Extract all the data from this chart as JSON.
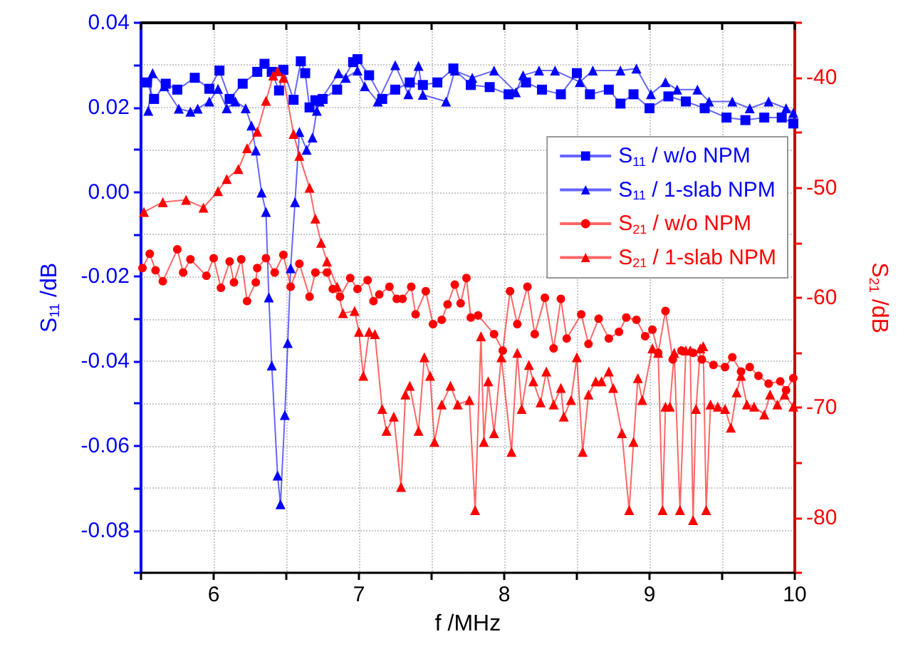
{
  "chart_data": {
    "type": "line",
    "xlabel": "f /MHz",
    "ylabel": "S$_{11}$ /dB",
    "y2label": "S$_{21}$ /dB",
    "xlim": [
      5.5,
      10
    ],
    "xticks": [
      {
        "value": 5.5,
        "label": null
      },
      6,
      {
        "value": 6.5,
        "label": null
      },
      7,
      {
        "value": 7.5,
        "label": null
      },
      8,
      {
        "value": 8.5,
        "label": null
      },
      9,
      {
        "value": 9.5,
        "label": null
      },
      10
    ],
    "ylim": [
      -0.09,
      0.04
    ],
    "yticks": [
      {
        "value": -0.09,
        "label": null
      },
      -0.08,
      {
        "value": -0.07,
        "label": null
      },
      -0.06,
      {
        "value": -0.05,
        "label": null
      },
      -0.04,
      {
        "value": -0.03,
        "label": null
      },
      -0.02,
      {
        "value": -0.01,
        "label": null
      },
      {
        "value": 0,
        "label": "0.00"
      },
      {
        "value": 0.01,
        "label": null
      },
      0.02,
      {
        "value": 0.03,
        "label": null
      },
      0.04
    ],
    "y2lim": [
      -85,
      -35
    ],
    "y2ticks": [
      {
        "value": -85,
        "label": null
      },
      -80,
      {
        "value": -75,
        "label": null
      },
      -70,
      {
        "value": -65,
        "label": null
      },
      -60,
      {
        "value": -55,
        "label": null
      },
      -50,
      {
        "value": -45,
        "label": null
      },
      -40,
      {
        "value": -35,
        "label": null
      }
    ],
    "grid": true,
    "legend": "right",
    "line_style": "solid",
    "series": [
      {
        "name": "S$_{11}$ / w/o NPM",
        "color": "#0000ff",
        "marker": "square",
        "x": [
          5.54,
          5.59,
          5.67,
          5.75,
          5.87,
          5.97,
          6.04,
          6.11,
          6.2,
          6.3,
          6.35,
          6.4,
          6.45,
          6.48,
          6.55,
          6.6,
          6.63,
          6.66,
          6.7,
          6.75,
          6.85,
          6.96,
          6.99,
          7.07,
          7.16,
          7.25,
          7.35,
          7.44,
          7.54,
          7.65,
          7.77,
          7.9,
          8.03,
          8.15,
          8.26,
          8.39,
          8.5,
          8.59,
          8.72,
          8.8,
          8.89,
          9.0,
          9.13,
          9.25,
          9.38,
          9.53,
          9.66,
          9.79,
          9.91,
          9.99
        ],
        "values": [
          0.0259,
          0.022,
          0.0256,
          0.0242,
          0.027,
          0.0244,
          0.0287,
          0.022,
          0.0256,
          0.0284,
          0.0303,
          0.0284,
          0.024,
          0.0289,
          0.0218,
          0.0309,
          0.0281,
          0.02,
          0.0217,
          0.022,
          0.0242,
          0.0307,
          0.0314,
          0.0276,
          0.022,
          0.0242,
          0.0259,
          0.0253,
          0.0259,
          0.0292,
          0.0253,
          0.0248,
          0.0231,
          0.0259,
          0.0242,
          0.0231,
          0.0281,
          0.0231,
          0.0242,
          0.0209,
          0.0231,
          0.0198,
          0.0226,
          0.0214,
          0.0198,
          0.0176,
          0.017,
          0.0176,
          0.0176,
          0.0162
        ]
      },
      {
        "name": "S$_{11}$ / 1-slab NPM",
        "color": "#0000ff",
        "marker": "triangle",
        "x": [
          5.55,
          5.58,
          5.66,
          5.76,
          5.84,
          5.89,
          5.97,
          6.03,
          6.09,
          6.15,
          6.22,
          6.26,
          6.29,
          6.33,
          6.36,
          6.38,
          6.4,
          6.44,
          6.46,
          6.49,
          6.51,
          6.53,
          6.56,
          6.59,
          6.64,
          6.68,
          6.71,
          6.73,
          6.86,
          6.91,
          6.99,
          7.04,
          7.13,
          7.25,
          7.34,
          7.41,
          7.44,
          7.6,
          7.66,
          7.78,
          7.93,
          8.08,
          8.13,
          8.24,
          8.35,
          8.52,
          8.61,
          8.8,
          8.91,
          9.01,
          9.11,
          9.19,
          9.33,
          9.41,
          9.57,
          9.69,
          9.82,
          9.94,
          9.99
        ],
        "values": [
          0.0192,
          0.0281,
          0.025,
          0.0197,
          0.019,
          0.0197,
          0.0214,
          0.0244,
          0.0198,
          0.0214,
          0.0198,
          0.0157,
          0.0098,
          -0.0001,
          -0.0047,
          -0.0249,
          -0.041,
          -0.067,
          -0.0738,
          -0.0527,
          -0.0357,
          -0.018,
          -0.0024,
          0.0142,
          0.01,
          0.0129,
          0.0192,
          0.0214,
          0.0281,
          0.027,
          0.0287,
          0.025,
          0.0214,
          0.03,
          0.0231,
          0.0298,
          0.023,
          0.0214,
          0.0287,
          0.027,
          0.0287,
          0.0236,
          0.0276,
          0.0287,
          0.0287,
          0.026,
          0.0287,
          0.0287,
          0.0292,
          0.0231,
          0.026,
          0.0242,
          0.0242,
          0.0214,
          0.0214,
          0.0198,
          0.0214,
          0.0198,
          0.0187
        ]
      },
      {
        "name": "S$_{21}$ / w/o NPM",
        "color": "#ff0000",
        "marker": "circle",
        "axis": "y2",
        "x": [
          5.51,
          5.56,
          5.6,
          5.65,
          5.75,
          5.79,
          5.84,
          5.95,
          6.0,
          6.05,
          6.11,
          6.14,
          6.19,
          6.23,
          6.29,
          6.3,
          6.36,
          6.42,
          6.48,
          6.53,
          6.59,
          6.66,
          6.7,
          6.78,
          6.82,
          6.87,
          6.94,
          6.99,
          7.06,
          7.1,
          7.14,
          7.21,
          7.26,
          7.3,
          7.36,
          7.39,
          7.46,
          7.51,
          7.57,
          7.61,
          7.66,
          7.7,
          7.74,
          7.77,
          7.82,
          7.93,
          7.99,
          8.04,
          8.09,
          8.16,
          8.21,
          8.28,
          8.34,
          8.39,
          8.43,
          8.53,
          8.58,
          8.65,
          8.72,
          8.79,
          8.84,
          8.91,
          8.97,
          9.02,
          9.06,
          9.11,
          9.16,
          9.22,
          9.3,
          9.36,
          9.44,
          9.52,
          9.57,
          9.63,
          9.69,
          9.75,
          9.82,
          9.9,
          9.94,
          9.99
        ],
        "values": [
          -57.3,
          -56,
          -57.5,
          -58.5,
          -55.6,
          -57.7,
          -56.5,
          -58,
          -56.4,
          -59.1,
          -56.7,
          -58.6,
          -56.5,
          -60.3,
          -58.6,
          -57.3,
          -56.4,
          -57.7,
          -56.1,
          -59,
          -56.9,
          -59.9,
          -57.7,
          -57.7,
          -59.2,
          -59.9,
          -58.2,
          -59.2,
          -58.4,
          -60.3,
          -59.7,
          -59,
          -60.1,
          -60.1,
          -59,
          -61.5,
          -59.4,
          -62.4,
          -62,
          -60.6,
          -58.8,
          -60.5,
          -58.2,
          -61.8,
          -61.6,
          -63.3,
          -64.8,
          -59.4,
          -62.4,
          -59,
          -63.3,
          -60,
          -64.6,
          -60.1,
          -63.7,
          -61.5,
          -64.2,
          -61.9,
          -63.7,
          -63.1,
          -61.8,
          -62,
          -63.5,
          -62.9,
          -65,
          -61.2,
          -65.6,
          -64.8,
          -65,
          -65.6,
          -66.1,
          -66.3,
          -65.4,
          -66.7,
          -66.3,
          -67.1,
          -67.8,
          -67.6,
          -68.4,
          -67.3
        ]
      },
      {
        "name": "S$_{21}$ / 1-slab NPM",
        "color": "#ff0000",
        "marker": "triangle",
        "axis": "y2",
        "x": [
          5.52,
          5.65,
          5.81,
          5.93,
          6.03,
          6.09,
          6.17,
          6.23,
          6.3,
          6.36,
          6.41,
          6.44,
          6.48,
          6.55,
          6.59,
          6.66,
          6.7,
          6.74,
          6.78,
          6.85,
          6.89,
          6.97,
          7.0,
          7.03,
          7.07,
          7.11,
          7.16,
          7.19,
          7.24,
          7.29,
          7.32,
          7.35,
          7.41,
          7.45,
          7.49,
          7.52,
          7.57,
          7.63,
          7.68,
          7.76,
          7.8,
          7.84,
          7.86,
          7.89,
          7.93,
          7.98,
          8.05,
          8.09,
          8.12,
          8.17,
          8.2,
          8.25,
          8.29,
          8.34,
          8.39,
          8.41,
          8.46,
          8.5,
          8.54,
          8.58,
          8.63,
          8.67,
          8.72,
          8.75,
          8.81,
          8.86,
          8.89,
          8.92,
          8.95,
          9.02,
          9.06,
          9.09,
          9.11,
          9.14,
          9.17,
          9.21,
          9.25,
          9.28,
          9.3,
          9.32,
          9.35,
          9.37,
          9.39,
          9.42,
          9.47,
          9.52,
          9.56,
          9.6,
          9.63,
          9.67,
          9.72,
          9.79,
          9.83,
          9.88,
          9.93,
          9.99
        ],
        "values": [
          -52.2,
          -51.3,
          -51.1,
          -51.8,
          -50.3,
          -49.2,
          -48.3,
          -46.4,
          -44.9,
          -42.1,
          -39.8,
          -39.4,
          -40,
          -45.1,
          -47.1,
          -50,
          -52.8,
          -55,
          -56.7,
          -59,
          -61.4,
          -61.2,
          -63.1,
          -67.1,
          -63.1,
          -63.3,
          -70.1,
          -72.1,
          -70.8,
          -77.2,
          -68.8,
          -68,
          -72.1,
          -65.4,
          -67.1,
          -73.1,
          -69.7,
          -68,
          -69.7,
          -69.3,
          -79.3,
          -63.5,
          -73.1,
          -67.6,
          -72.3,
          -65.4,
          -74,
          -65,
          -70.1,
          -66.1,
          -67.6,
          -69.5,
          -66.7,
          -69.7,
          -68.2,
          -70.8,
          -69.3,
          -65.4,
          -74,
          -68.8,
          -67.6,
          -67.6,
          -66.7,
          -68.2,
          -72.3,
          -79.3,
          -73.1,
          -67.3,
          -69.3,
          -64.6,
          -65,
          -79.3,
          -69.9,
          -69.9,
          -65,
          -79.3,
          -64.8,
          -64.8,
          -80.2,
          -70.1,
          -64.6,
          -64.4,
          -79.3,
          -69.7,
          -69.9,
          -70.1,
          -71.8,
          -68.6,
          -67.1,
          -69.7,
          -69.9,
          -70.6,
          -68.8,
          -69.7,
          -68.8,
          -69.9
        ]
      }
    ]
  }
}
